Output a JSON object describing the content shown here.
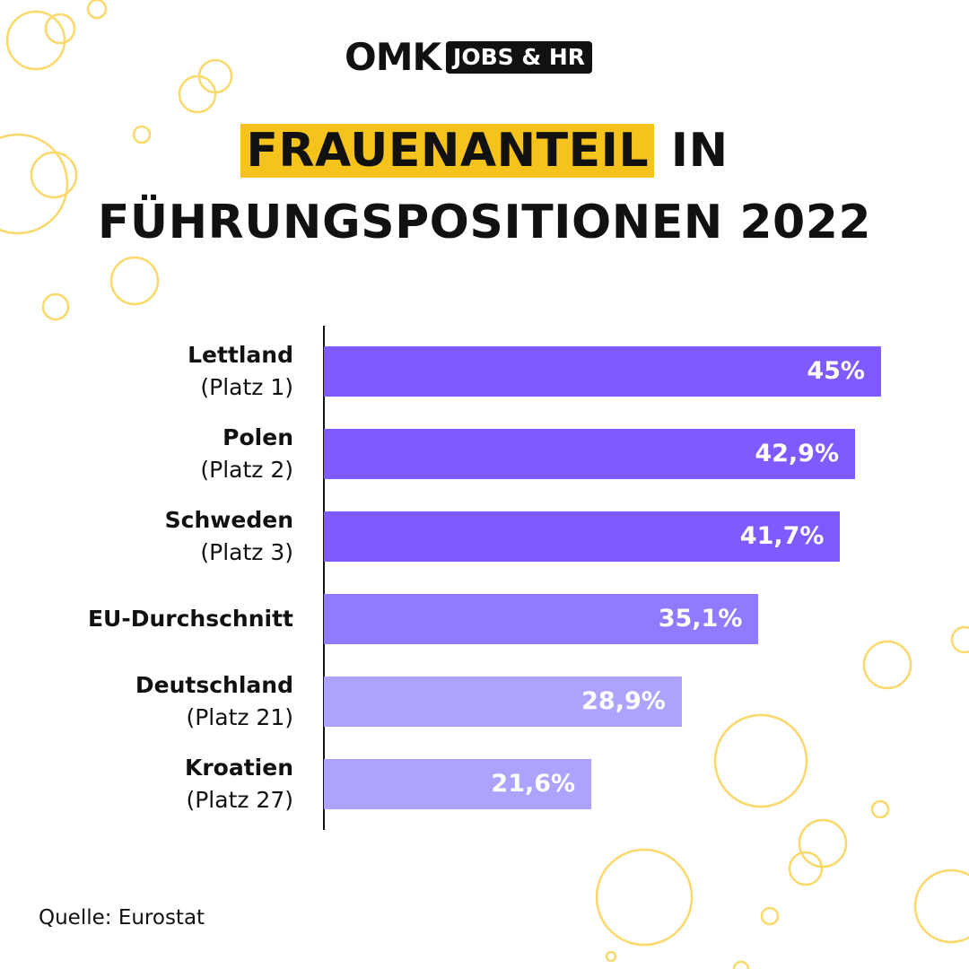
{
  "logo": {
    "brand": "OMK",
    "badge": "JOBS & HR"
  },
  "title": {
    "highlight": "FRAUENANTEIL",
    "rest_line1": "IN",
    "line2": "FÜHRUNGSPOSITIONEN 2022"
  },
  "source": "Quelle: Eurostat",
  "colors": {
    "top": "#7F5AFF",
    "average": "#8F7BFF",
    "lower": "#ADA3FD",
    "highlight": "#F6C31C",
    "bubbles": "#FBD86A"
  },
  "chart_data": {
    "type": "bar",
    "orientation": "horizontal",
    "categories": [
      "Lettland",
      "Polen",
      "Schweden",
      "EU-Durchschnitt",
      "Deutschland",
      "Kroatien"
    ],
    "sublabels": [
      "(Platz 1)",
      "(Platz 2)",
      "(Platz 3)",
      "",
      "(Platz 21)",
      "(Platz 27)"
    ],
    "values": [
      45,
      42.9,
      41.7,
      35.1,
      28.9,
      21.6
    ],
    "value_labels": [
      "45%",
      "42,9%",
      "41,7%",
      "35,1%",
      "28,9%",
      "21,6%"
    ],
    "xlim": [
      0,
      45
    ],
    "grid": false
  }
}
